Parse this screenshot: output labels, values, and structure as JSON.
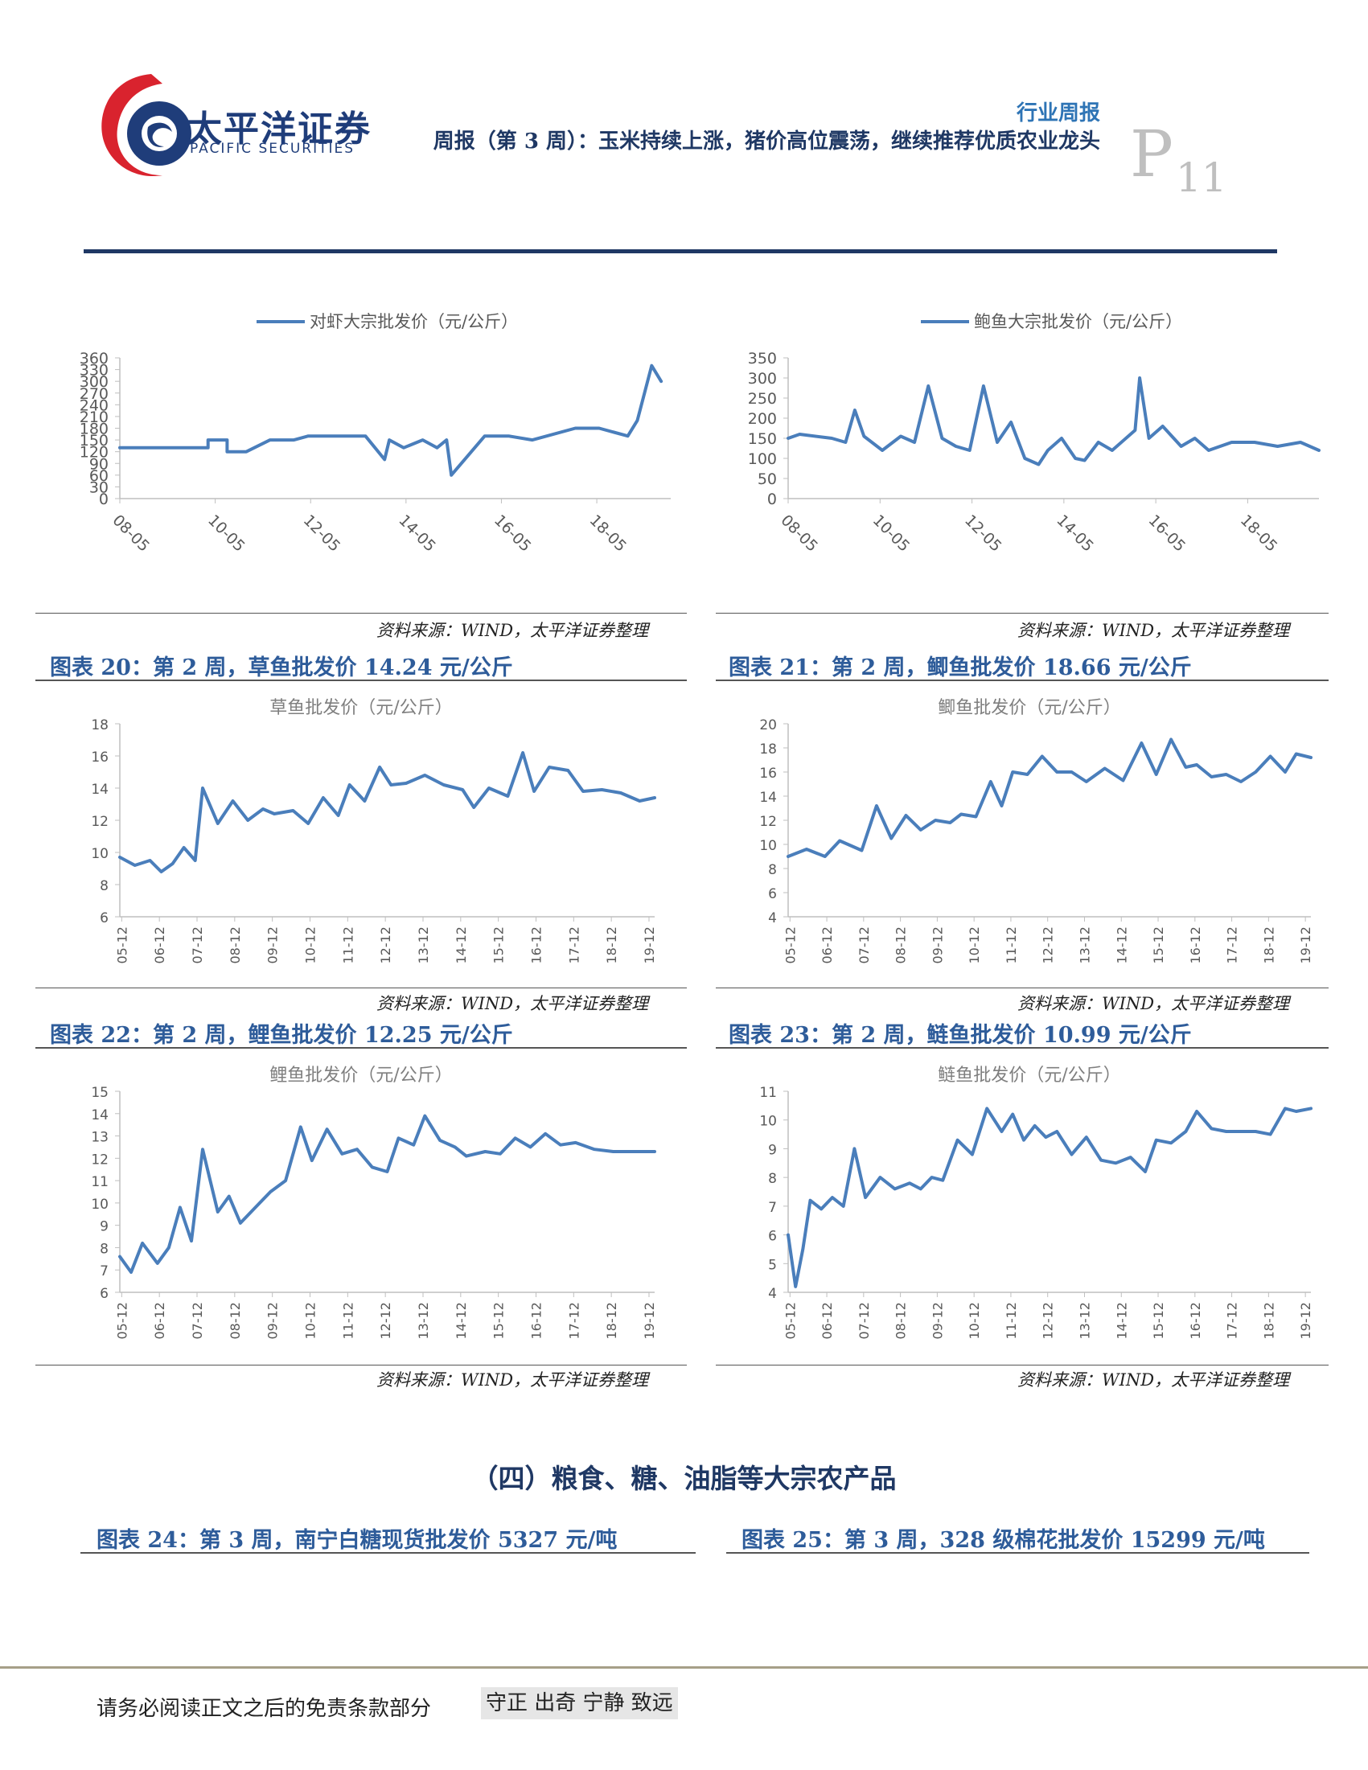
{
  "header": {
    "logo_cn": "太平洋证券",
    "logo_en": "PACIFIC SECURITIES",
    "report_type": "行业周报",
    "report_title": "周报（第 3 周）：玉米持续上涨，猪价高位震荡，继续推荐优质农业龙头",
    "page_letter": "P",
    "page_number": "11",
    "colors": {
      "brand_red": "#d9232e",
      "brand_navy": "#1f3d7a",
      "rule": "#1f3864",
      "caption": "#2e5c9a",
      "line": "#4a7ebb"
    }
  },
  "source_text": "资料来源：WIND，太平洋证券整理",
  "charts": [
    {
      "caption": "",
      "legend": "对虾大宗批发价（元/公斤）",
      "title": "",
      "yticks": [
        "0",
        "30",
        "60",
        "90",
        "120",
        "150",
        "180",
        "210",
        "240",
        "270",
        "300",
        "330",
        "360"
      ],
      "xticks": [
        "08-05",
        "10-05",
        "12-05",
        "14-05",
        "16-05",
        "18-05"
      ]
    },
    {
      "caption": "",
      "legend": "鲍鱼大宗批发价（元/公斤）",
      "title": "",
      "yticks": [
        "0",
        "50",
        "100",
        "150",
        "200",
        "250",
        "300",
        "350"
      ],
      "xticks": [
        "08-05",
        "10-05",
        "12-05",
        "14-05",
        "16-05",
        "18-05"
      ]
    },
    {
      "caption": "图表 20：第 2 周，草鱼批发价 14.24 元/公斤",
      "legend": "",
      "title": "草鱼批发价（元/公斤）",
      "yticks": [
        "6",
        "8",
        "10",
        "12",
        "14",
        "16",
        "18"
      ],
      "xticks": [
        "05-12",
        "06-12",
        "07-12",
        "08-12",
        "09-12",
        "10-12",
        "11-12",
        "12-12",
        "13-12",
        "14-12",
        "15-12",
        "16-12",
        "17-12",
        "18-12",
        "19-12"
      ]
    },
    {
      "caption": "图表 21：第 2 周，鲫鱼批发价 18.66 元/公斤",
      "legend": "",
      "title": "鲫鱼批发价（元/公斤）",
      "yticks": [
        "4",
        "6",
        "8",
        "10",
        "12",
        "14",
        "16",
        "18",
        "20"
      ],
      "xticks": [
        "05-12",
        "06-12",
        "07-12",
        "08-12",
        "09-12",
        "10-12",
        "11-12",
        "12-12",
        "13-12",
        "14-12",
        "15-12",
        "16-12",
        "17-12",
        "18-12",
        "19-12"
      ]
    },
    {
      "caption": "图表 22：第 2 周，鲤鱼批发价 12.25 元/公斤",
      "legend": "",
      "title": "鲤鱼批发价（元/公斤）",
      "yticks": [
        "6",
        "7",
        "8",
        "9",
        "10",
        "11",
        "12",
        "13",
        "14",
        "15"
      ],
      "xticks": [
        "05-12",
        "06-12",
        "07-12",
        "08-12",
        "09-12",
        "10-12",
        "11-12",
        "12-12",
        "13-12",
        "14-12",
        "15-12",
        "16-12",
        "17-12",
        "18-12",
        "19-12"
      ]
    },
    {
      "caption": "图表 23：第 2 周，鲢鱼批发价 10.99 元/公斤",
      "legend": "",
      "title": "鲢鱼批发价（元/公斤）",
      "yticks": [
        "4",
        "5",
        "6",
        "7",
        "8",
        "9",
        "10",
        "11"
      ],
      "xticks": [
        "05-12",
        "06-12",
        "07-12",
        "08-12",
        "09-12",
        "10-12",
        "11-12",
        "12-12",
        "13-12",
        "14-12",
        "15-12",
        "16-12",
        "17-12",
        "18-12",
        "19-12"
      ]
    }
  ],
  "chart_data": [
    {
      "type": "line",
      "ylim": [
        0,
        360
      ],
      "xlim": [
        2008.35,
        2019.9
      ],
      "series": [
        {
          "name": "对虾大宗批发价（元/公斤）",
          "x": [
            2008.35,
            2010.2,
            2010.2,
            2010.6,
            2010.6,
            2010.9,
            2011.0,
            2011.5,
            2012.0,
            2012.3,
            2013.2,
            2013.5,
            2013.9,
            2014.0,
            2014.3,
            2014.7,
            2015.0,
            2015.2,
            2015.3,
            2016.0,
            2016.5,
            2017.0,
            2017.9,
            2018.4,
            2019.0,
            2019.2,
            2019.5,
            2019.7
          ],
          "y": [
            130,
            130,
            150,
            150,
            120,
            120,
            120,
            150,
            150,
            160,
            160,
            160,
            100,
            150,
            130,
            150,
            130,
            150,
            60,
            160,
            160,
            150,
            180,
            180,
            160,
            200,
            340,
            300
          ]
        }
      ]
    },
    {
      "type": "line",
      "ylim": [
        0,
        350
      ],
      "xlim": [
        2008.35,
        2019.9
      ],
      "series": [
        {
          "name": "鲍鱼大宗批发价（元/公斤）",
          "x": [
            2008.35,
            2008.6,
            2009.3,
            2009.6,
            2009.8,
            2010.0,
            2010.4,
            2010.8,
            2011.1,
            2011.4,
            2011.7,
            2012.0,
            2012.3,
            2012.6,
            2012.9,
            2013.2,
            2013.5,
            2013.8,
            2014.0,
            2014.3,
            2014.6,
            2014.8,
            2015.1,
            2015.4,
            2015.7,
            2015.9,
            2016.0,
            2016.2,
            2016.5,
            2016.9,
            2017.2,
            2017.5,
            2018.0,
            2018.5,
            2019.0,
            2019.5,
            2019.9
          ],
          "y": [
            150,
            160,
            150,
            140,
            220,
            155,
            120,
            155,
            140,
            280,
            150,
            130,
            120,
            280,
            140,
            190,
            100,
            85,
            120,
            150,
            100,
            95,
            140,
            120,
            150,
            170,
            300,
            150,
            180,
            130,
            150,
            120,
            140,
            140,
            130,
            140,
            120
          ]
        }
      ]
    },
    {
      "type": "line",
      "ylim": [
        6,
        18
      ],
      "xlim": [
        2005.9,
        2020.1
      ],
      "series": [
        {
          "name": "草鱼批发价（元/公斤）",
          "x": [
            2005.9,
            2006.3,
            2006.7,
            2007.0,
            2007.3,
            2007.6,
            2007.9,
            2008.1,
            2008.5,
            2008.9,
            2009.3,
            2009.7,
            2010.0,
            2010.5,
            2010.9,
            2011.3,
            2011.7,
            2012.0,
            2012.4,
            2012.8,
            2013.1,
            2013.5,
            2014.0,
            2014.5,
            2015.0,
            2015.3,
            2015.7,
            2016.2,
            2016.6,
            2016.9,
            2017.3,
            2017.8,
            2018.2,
            2018.7,
            2019.2,
            2019.7,
            2020.1
          ],
          "y": [
            9.7,
            9.2,
            9.5,
            8.8,
            9.3,
            10.3,
            9.5,
            14.0,
            11.8,
            13.2,
            12.0,
            12.7,
            12.4,
            12.6,
            11.8,
            13.4,
            12.3,
            14.2,
            13.2,
            15.3,
            14.2,
            14.3,
            14.8,
            14.2,
            13.9,
            12.8,
            14.0,
            13.5,
            16.2,
            13.8,
            15.3,
            15.1,
            13.8,
            13.9,
            13.7,
            13.2,
            13.4
          ]
        }
      ]
    },
    {
      "type": "line",
      "ylim": [
        4,
        20
      ],
      "xlim": [
        2005.9,
        2020.1
      ],
      "series": [
        {
          "name": "鲫鱼批发价（元/公斤）",
          "x": [
            2005.9,
            2006.4,
            2006.9,
            2007.3,
            2007.9,
            2008.3,
            2008.7,
            2009.1,
            2009.5,
            2009.9,
            2010.3,
            2010.6,
            2011.0,
            2011.4,
            2011.7,
            2012.0,
            2012.4,
            2012.8,
            2013.2,
            2013.6,
            2014.0,
            2014.5,
            2015.0,
            2015.5,
            2015.9,
            2016.3,
            2016.7,
            2017.0,
            2017.4,
            2017.8,
            2018.2,
            2018.6,
            2019.0,
            2019.4,
            2019.7,
            2020.1
          ],
          "y": [
            9.0,
            9.6,
            9.0,
            10.3,
            9.5,
            13.2,
            10.5,
            12.4,
            11.2,
            12.0,
            11.8,
            12.5,
            12.3,
            15.2,
            13.2,
            16.0,
            15.8,
            17.3,
            16.0,
            16.0,
            15.2,
            16.3,
            15.3,
            18.4,
            15.8,
            18.7,
            16.4,
            16.6,
            15.6,
            15.8,
            15.2,
            16.0,
            17.3,
            16.0,
            17.5,
            17.2
          ]
        }
      ]
    },
    {
      "type": "line",
      "ylim": [
        6,
        15
      ],
      "xlim": [
        2005.9,
        2020.1
      ],
      "series": [
        {
          "name": "鲤鱼批发价（元/公斤）",
          "x": [
            2005.9,
            2006.2,
            2006.5,
            2006.9,
            2007.2,
            2007.5,
            2007.8,
            2008.1,
            2008.5,
            2008.8,
            2009.1,
            2009.5,
            2009.9,
            2010.3,
            2010.7,
            2011.0,
            2011.4,
            2011.8,
            2012.2,
            2012.6,
            2013.0,
            2013.3,
            2013.7,
            2014.0,
            2014.4,
            2014.8,
            2015.1,
            2015.6,
            2016.0,
            2016.4,
            2016.8,
            2017.2,
            2017.6,
            2018.0,
            2018.5,
            2019.0,
            2019.5,
            2020.1
          ],
          "y": [
            7.6,
            6.9,
            8.2,
            7.3,
            8.0,
            9.8,
            8.3,
            12.4,
            9.6,
            10.3,
            9.1,
            9.8,
            10.5,
            11.0,
            13.4,
            11.9,
            13.3,
            12.2,
            12.4,
            11.6,
            11.4,
            12.9,
            12.6,
            13.9,
            12.8,
            12.5,
            12.1,
            12.3,
            12.2,
            12.9,
            12.5,
            13.1,
            12.6,
            12.7,
            12.4,
            12.3,
            12.3,
            12.3
          ]
        }
      ]
    },
    {
      "type": "line",
      "ylim": [
        4,
        11
      ],
      "xlim": [
        2005.9,
        2020.1
      ],
      "series": [
        {
          "name": "鲢鱼批发价（元/公斤）",
          "x": [
            2005.9,
            2006.1,
            2006.3,
            2006.5,
            2006.8,
            2007.1,
            2007.4,
            2007.7,
            2008.0,
            2008.4,
            2008.8,
            2009.2,
            2009.5,
            2009.8,
            2010.1,
            2010.5,
            2010.9,
            2011.3,
            2011.7,
            2012.0,
            2012.3,
            2012.6,
            2012.9,
            2013.2,
            2013.6,
            2014.0,
            2014.4,
            2014.8,
            2015.2,
            2015.6,
            2015.9,
            2016.3,
            2016.7,
            2017.0,
            2017.4,
            2017.8,
            2018.2,
            2018.6,
            2019.0,
            2019.4,
            2019.7,
            2020.1
          ],
          "y": [
            6.0,
            4.2,
            5.5,
            7.2,
            6.9,
            7.3,
            7.0,
            9.0,
            7.3,
            8.0,
            7.6,
            7.8,
            7.6,
            8.0,
            7.9,
            9.3,
            8.8,
            10.4,
            9.6,
            10.2,
            9.3,
            9.8,
            9.4,
            9.6,
            8.8,
            9.4,
            8.6,
            8.5,
            8.7,
            8.2,
            9.3,
            9.2,
            9.6,
            10.3,
            9.7,
            9.6,
            9.6,
            9.6,
            9.5,
            10.4,
            10.3,
            10.4
          ]
        }
      ]
    }
  ]
}
